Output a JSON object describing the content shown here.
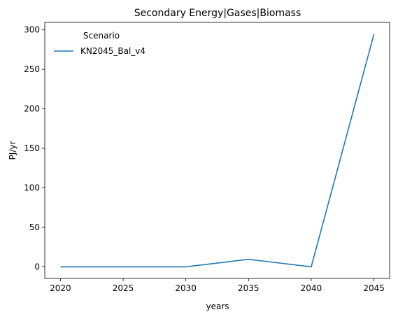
{
  "chart_data": {
    "type": "line",
    "title": "Secondary Energy|Gases|Biomass",
    "xlabel": "years",
    "ylabel": "PJ/yr",
    "x": [
      2020,
      2025,
      2030,
      2035,
      2040,
      2045
    ],
    "xticks": [
      "2020",
      "2025",
      "2030",
      "2035",
      "2040",
      "2045"
    ],
    "yticks": [
      "0",
      "50",
      "100",
      "150",
      "200",
      "250",
      "300"
    ],
    "xlim": [
      2018.75,
      2046.25
    ],
    "ylim": [
      -14.7,
      309.5
    ],
    "grid": false,
    "legend": {
      "title": "Scenario",
      "placement": "top-left"
    },
    "series": [
      {
        "name": "KN2045_Bal_v4",
        "color": "#1f77b4",
        "values": [
          0,
          0,
          0,
          9.5,
          0,
          294.5
        ]
      }
    ]
  }
}
